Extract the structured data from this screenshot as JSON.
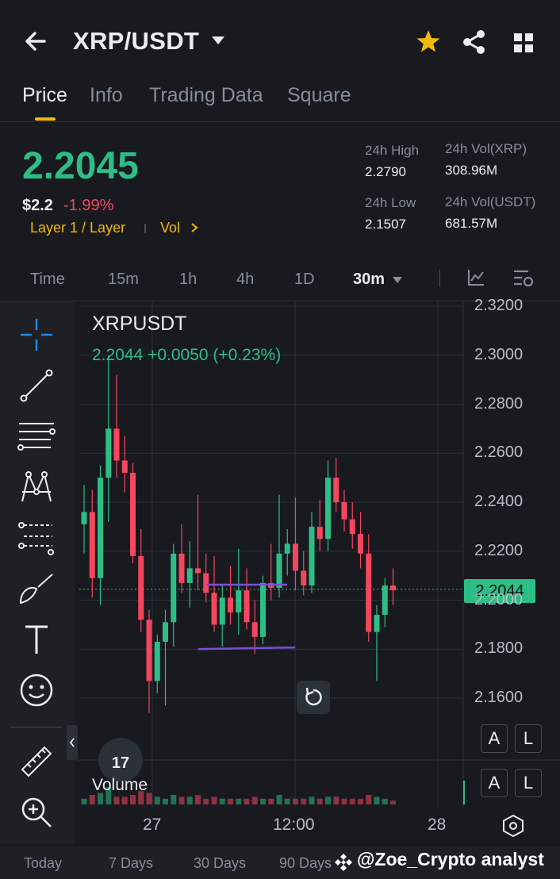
{
  "header": {
    "pair": "XRP/USDT",
    "icons": [
      "back-arrow-icon",
      "chevron-down-icon",
      "star-icon",
      "share-icon",
      "grid-icon"
    ]
  },
  "tabs": [
    {
      "label": "Price",
      "active": true
    },
    {
      "label": "Info",
      "active": false
    },
    {
      "label": "Trading Data",
      "active": false
    },
    {
      "label": "Square",
      "active": false
    }
  ],
  "ticker": {
    "last_price": "2.2045",
    "fiat_price": "$2.2",
    "change_pct": "-1.99%",
    "category": "Layer 1 / Layer",
    "vol_link": "Vol",
    "stats": {
      "high_label": "24h High",
      "high": "2.2790",
      "low_label": "24h Low",
      "low": "2.1507",
      "vol_base_label": "24h Vol(XRP)",
      "vol_base": "308.96M",
      "vol_quote_label": "24h Vol(USDT)",
      "vol_quote": "681.57M"
    }
  },
  "intervals": [
    {
      "label": "Time",
      "active": false
    },
    {
      "label": "15m",
      "active": false
    },
    {
      "label": "1h",
      "active": false
    },
    {
      "label": "4h",
      "active": false
    },
    {
      "label": "1D",
      "active": false
    },
    {
      "label": "30m",
      "active": true
    }
  ],
  "colors": {
    "up": "#2ebd85",
    "down": "#f6465d",
    "accent": "#f0b90b",
    "drawing": "#7a4fd6"
  },
  "chart": {
    "symbol": "XRPUSDT",
    "last_line": "2.2044  +0.0050 (+0.23%)",
    "volume_label": "Volume",
    "volume_badge": "17",
    "price_tag": "2.2044",
    "reset_icon": "undo-icon",
    "al_buttons": [
      "A",
      "L",
      "A",
      "L"
    ]
  },
  "chart_data": {
    "type": "candlestick",
    "title": "XRPUSDT",
    "y_ticks": [
      "2.3200",
      "2.3000",
      "2.2800",
      "2.2600",
      "2.2400",
      "2.2200",
      "2.2000",
      "2.1800",
      "2.1600"
    ],
    "ylim": [
      2.145,
      2.322
    ],
    "x_ticks": [
      "27",
      "12:00",
      "28"
    ],
    "current_price": 2.2044,
    "candles": [
      {
        "o": 2.231,
        "h": 2.247,
        "l": 2.219,
        "c": 2.236
      },
      {
        "o": 2.236,
        "h": 2.245,
        "l": 2.201,
        "c": 2.209
      },
      {
        "o": 2.209,
        "h": 2.255,
        "l": 2.198,
        "c": 2.25
      },
      {
        "o": 2.25,
        "h": 2.3,
        "l": 2.232,
        "c": 2.27
      },
      {
        "o": 2.27,
        "h": 2.292,
        "l": 2.25,
        "c": 2.257
      },
      {
        "o": 2.257,
        "h": 2.267,
        "l": 2.244,
        "c": 2.252
      },
      {
        "o": 2.252,
        "h": 2.256,
        "l": 2.215,
        "c": 2.218
      },
      {
        "o": 2.218,
        "h": 2.229,
        "l": 2.187,
        "c": 2.192
      },
      {
        "o": 2.192,
        "h": 2.196,
        "l": 2.154,
        "c": 2.167
      },
      {
        "o": 2.167,
        "h": 2.186,
        "l": 2.162,
        "c": 2.183
      },
      {
        "o": 2.183,
        "h": 2.196,
        "l": 2.157,
        "c": 2.191
      },
      {
        "o": 2.191,
        "h": 2.223,
        "l": 2.181,
        "c": 2.219
      },
      {
        "o": 2.219,
        "h": 2.231,
        "l": 2.203,
        "c": 2.207
      },
      {
        "o": 2.207,
        "h": 2.224,
        "l": 2.197,
        "c": 2.213
      },
      {
        "o": 2.213,
        "h": 2.243,
        "l": 2.204,
        "c": 2.211
      },
      {
        "o": 2.211,
        "h": 2.219,
        "l": 2.199,
        "c": 2.203
      },
      {
        "o": 2.203,
        "h": 2.218,
        "l": 2.187,
        "c": 2.19
      },
      {
        "o": 2.19,
        "h": 2.206,
        "l": 2.181,
        "c": 2.201
      },
      {
        "o": 2.201,
        "h": 2.214,
        "l": 2.19,
        "c": 2.195
      },
      {
        "o": 2.195,
        "h": 2.221,
        "l": 2.186,
        "c": 2.204
      },
      {
        "o": 2.204,
        "h": 2.213,
        "l": 2.188,
        "c": 2.191
      },
      {
        "o": 2.191,
        "h": 2.2,
        "l": 2.178,
        "c": 2.185
      },
      {
        "o": 2.185,
        "h": 2.21,
        "l": 2.182,
        "c": 2.207
      },
      {
        "o": 2.207,
        "h": 2.223,
        "l": 2.2,
        "c": 2.205
      },
      {
        "o": 2.205,
        "h": 2.243,
        "l": 2.201,
        "c": 2.219
      },
      {
        "o": 2.219,
        "h": 2.229,
        "l": 2.21,
        "c": 2.223
      },
      {
        "o": 2.223,
        "h": 2.242,
        "l": 2.204,
        "c": 2.212
      },
      {
        "o": 2.212,
        "h": 2.22,
        "l": 2.202,
        "c": 2.206
      },
      {
        "o": 2.206,
        "h": 2.236,
        "l": 2.203,
        "c": 2.23
      },
      {
        "o": 2.23,
        "h": 2.241,
        "l": 2.22,
        "c": 2.225
      },
      {
        "o": 2.225,
        "h": 2.257,
        "l": 2.22,
        "c": 2.25
      },
      {
        "o": 2.25,
        "h": 2.258,
        "l": 2.236,
        "c": 2.24
      },
      {
        "o": 2.24,
        "h": 2.245,
        "l": 2.228,
        "c": 2.233
      },
      {
        "o": 2.233,
        "h": 2.24,
        "l": 2.221,
        "c": 2.227
      },
      {
        "o": 2.227,
        "h": 2.236,
        "l": 2.213,
        "c": 2.219
      },
      {
        "o": 2.219,
        "h": 2.227,
        "l": 2.183,
        "c": 2.187
      },
      {
        "o": 2.187,
        "h": 2.198,
        "l": 2.167,
        "c": 2.194
      },
      {
        "o": 2.194,
        "h": 2.209,
        "l": 2.189,
        "c": 2.206
      },
      {
        "o": 2.206,
        "h": 2.213,
        "l": 2.198,
        "c": 2.204
      }
    ],
    "volume": [
      3,
      5,
      6,
      9,
      4,
      4,
      5,
      7,
      6,
      4,
      3,
      5,
      4,
      4,
      5,
      3,
      4,
      3,
      3,
      3,
      3,
      4,
      3,
      3,
      5,
      3,
      3,
      3,
      4,
      3,
      4,
      4,
      3,
      3,
      3,
      5,
      4,
      3,
      2
    ],
    "trendlines": [
      {
        "from": [
          16,
          2.2063
        ],
        "to": [
          24,
          2.2063
        ]
      },
      {
        "from": [
          15,
          2.18
        ],
        "to": [
          25,
          2.1807
        ]
      }
    ]
  },
  "footer": {
    "items": [
      "Today",
      "7 Days",
      "30 Days",
      "90 Days"
    ],
    "watermark": "@Zoe_Crypto analyst"
  }
}
